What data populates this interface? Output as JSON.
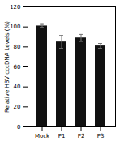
{
  "chart_data": {
    "type": "bar",
    "categories": [
      "Mock",
      "P1",
      "P2",
      "P3"
    ],
    "values": [
      101,
      85,
      89,
      81
    ],
    "errors": [
      1.5,
      6.5,
      3.5,
      2.5
    ],
    "color": "#111111",
    "ylabel": "Relative HBV cccDNA Levels (%)",
    "ylim": [
      0,
      120
    ],
    "yticks": [
      0,
      20,
      40,
      60,
      80,
      100,
      120
    ]
  }
}
